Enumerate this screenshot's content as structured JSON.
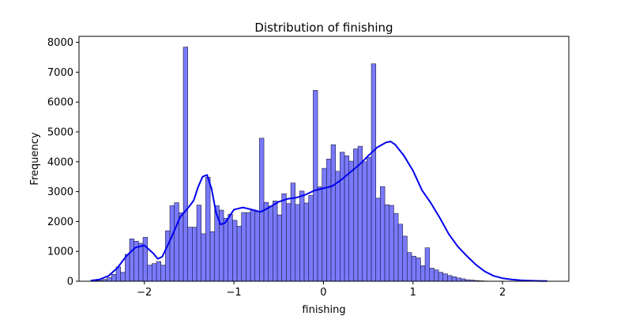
{
  "chart_data": {
    "type": "bar",
    "subtype": "histogram-with-kde",
    "title": "Distribution of finishing",
    "xlabel": "finishing",
    "ylabel": "Frequency",
    "xlim": [
      -2.73,
      2.74
    ],
    "ylim": [
      0,
      8200
    ],
    "xticks": [
      -2,
      -1,
      0,
      1,
      2
    ],
    "xtick_labels": [
      "−2",
      "−1",
      "0",
      "1",
      "2"
    ],
    "yticks": [
      0,
      1000,
      2000,
      3000,
      4000,
      5000,
      6000,
      7000,
      8000
    ],
    "ytick_labels": [
      "0",
      "1000",
      "2000",
      "3000",
      "4000",
      "5000",
      "6000",
      "7000",
      "8000"
    ],
    "grid": false,
    "legend": "none",
    "bin_start": -2.565,
    "bin_width": 0.05,
    "values": [
      20,
      30,
      60,
      120,
      230,
      480,
      300,
      900,
      1420,
      1340,
      1270,
      1470,
      540,
      590,
      660,
      540,
      1690,
      2530,
      2630,
      2290,
      7840,
      1810,
      1810,
      2550,
      1590,
      3480,
      1660,
      2530,
      2380,
      2110,
      2240,
      2040,
      1840,
      2300,
      2300,
      2380,
      2330,
      4790,
      2640,
      2520,
      2690,
      2220,
      2930,
      2600,
      3290,
      2570,
      3020,
      2620,
      2870,
      6390,
      3160,
      3780,
      4090,
      4570,
      3680,
      4320,
      4200,
      4020,
      4430,
      4520,
      4000,
      4150,
      7280,
      2780,
      3170,
      2560,
      2540,
      2270,
      1910,
      1510,
      960,
      840,
      780,
      520,
      1120,
      440,
      380,
      300,
      250,
      190,
      150,
      110,
      80,
      50,
      40,
      25,
      15,
      8
    ],
    "kde": {
      "x": [
        -2.6,
        -2.5,
        -2.4,
        -2.3,
        -2.2,
        -2.1,
        -2.0,
        -1.9,
        -1.85,
        -1.8,
        -1.7,
        -1.6,
        -1.5,
        -1.45,
        -1.4,
        -1.35,
        -1.3,
        -1.25,
        -1.2,
        -1.15,
        -1.1,
        -1.0,
        -0.9,
        -0.8,
        -0.7,
        -0.6,
        -0.5,
        -0.4,
        -0.3,
        -0.2,
        -0.1,
        0.0,
        0.1,
        0.2,
        0.3,
        0.4,
        0.5,
        0.6,
        0.7,
        0.75,
        0.8,
        0.9,
        1.0,
        1.1,
        1.2,
        1.3,
        1.4,
        1.5,
        1.6,
        1.7,
        1.8,
        1.9,
        2.0,
        2.1,
        2.2,
        2.3,
        2.4,
        2.5
      ],
      "y": [
        20,
        60,
        180,
        450,
        850,
        1130,
        1200,
        930,
        750,
        820,
        1450,
        2150,
        2500,
        2700,
        3150,
        3500,
        3560,
        3100,
        2300,
        1900,
        1950,
        2400,
        2470,
        2400,
        2320,
        2480,
        2660,
        2760,
        2800,
        2900,
        3040,
        3110,
        3190,
        3400,
        3650,
        3900,
        4200,
        4480,
        4650,
        4680,
        4580,
        4200,
        3700,
        3050,
        2620,
        2120,
        1580,
        1160,
        850,
        560,
        330,
        180,
        100,
        60,
        35,
        20,
        10,
        5
      ]
    },
    "colors": {
      "bar_fill": "#7a7aff",
      "bar_edge": "#1a1a3a",
      "kde_line": "#0000ee"
    }
  }
}
